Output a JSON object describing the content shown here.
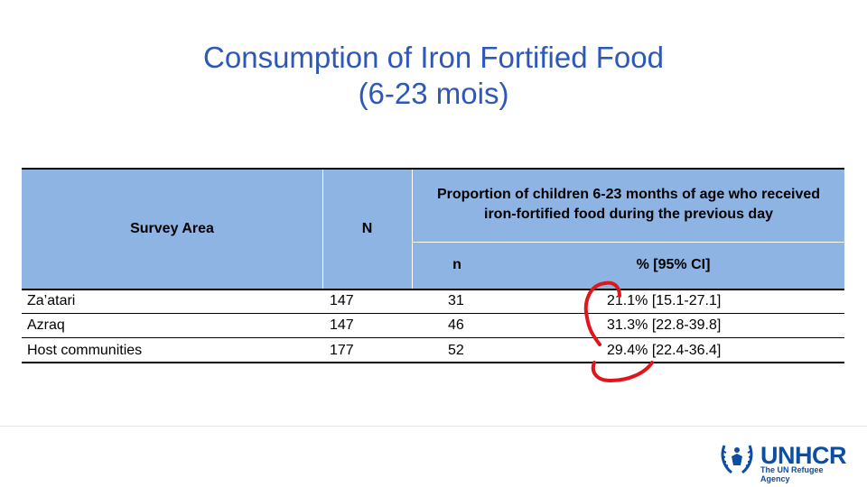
{
  "slide": {
    "title_line1": "Consumption of Iron Fortified Food",
    "title_line2": "(6-23 mois)"
  },
  "table": {
    "headers": {
      "survey_area": "Survey Area",
      "N": "N",
      "proportion": "Proportion of children 6-23 months of age who received iron-fortified food during the previous day",
      "n": "n",
      "pct_ci": "% [95% CI]"
    },
    "rows": [
      {
        "area": "Za’atari",
        "N": "147",
        "n": "31",
        "pct": "21.1% [15.1-27.1]"
      },
      {
        "area": "Azraq",
        "N": "147",
        "n": "46",
        "pct": "31.3% [22.8-39.8]"
      },
      {
        "area": "Host communities",
        "N": "177",
        "n": "52",
        "pct": "29.4% [22.4-36.4]"
      }
    ]
  },
  "colors": {
    "title": "#2e58b8",
    "header_bg": "#8eb4e3",
    "annotation": "#e0161b",
    "logo": "#0d4ea1"
  },
  "logo": {
    "name": "UNHCR",
    "tagline": "The UN Refugee Agency"
  }
}
